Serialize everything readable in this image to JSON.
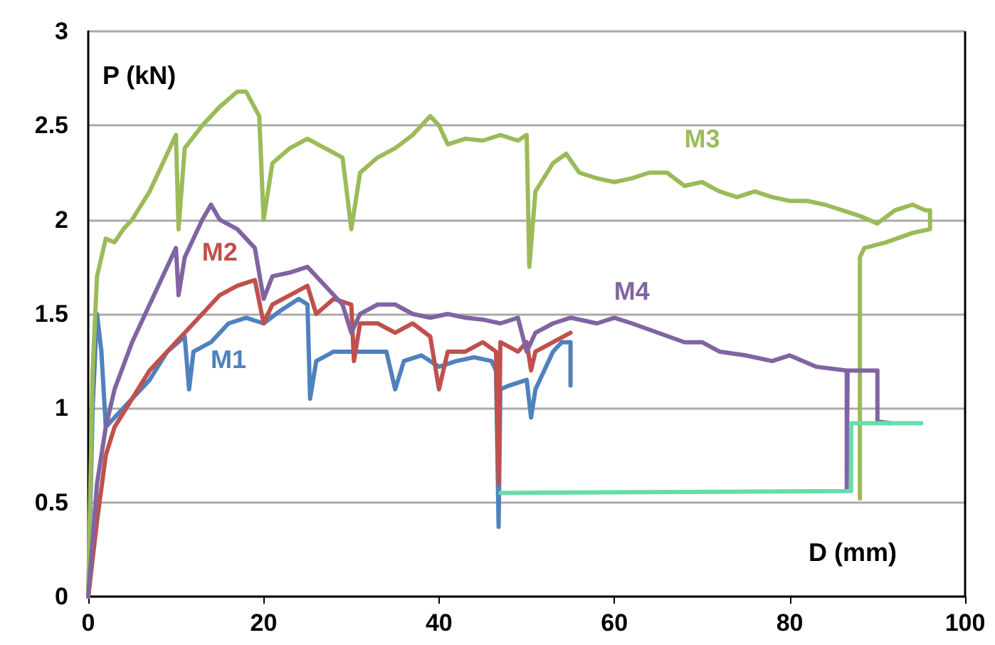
{
  "chart_data": {
    "type": "line",
    "xlabel": "D (mm)",
    "ylabel": "P (kN)",
    "xlim": [
      0,
      100
    ],
    "xticks": [
      0,
      20,
      40,
      60,
      80,
      100
    ],
    "ylim": [
      0,
      3
    ],
    "yticks": [
      0,
      0.5,
      1,
      1.5,
      2,
      2.5,
      3
    ],
    "grid": "y",
    "annotations": [
      "M1",
      "M2",
      "M3",
      "M4"
    ],
    "series": [
      {
        "color": "#4f81bd",
        "x": [
          0,
          0.5,
          1,
          1.5,
          2,
          3,
          5,
          7,
          9,
          11,
          11.5,
          12,
          14,
          16,
          18,
          20,
          22,
          24,
          25,
          25.3,
          26,
          28,
          30,
          32,
          34,
          35,
          36,
          38,
          40,
          42,
          44,
          46,
          46.5,
          46.8,
          47,
          48,
          50,
          50.5,
          51,
          53,
          54,
          55,
          55
        ],
        "values": [
          0,
          1,
          1.5,
          1.3,
          0.9,
          0.95,
          1.05,
          1.15,
          1.3,
          1.38,
          1.1,
          1.3,
          1.35,
          1.45,
          1.48,
          1.45,
          1.52,
          1.58,
          1.55,
          1.05,
          1.25,
          1.3,
          1.3,
          1.3,
          1.3,
          1.1,
          1.25,
          1.28,
          1.22,
          1.25,
          1.27,
          1.25,
          1.2,
          0.37,
          1.1,
          1.12,
          1.15,
          0.95,
          1.1,
          1.3,
          1.35,
          1.35,
          1.12
        ]
      },
      {
        "color": "#c0504d",
        "x": [
          0,
          1,
          2,
          3,
          5,
          7,
          9,
          11,
          13,
          15,
          17,
          19,
          20,
          21,
          23,
          25,
          26,
          28,
          30,
          30.3,
          31,
          33,
          35,
          37,
          39,
          40,
          41,
          43,
          45,
          46.5,
          46.8,
          47,
          49,
          50,
          50.5,
          51,
          53,
          55
        ],
        "values": [
          0,
          0.4,
          0.75,
          0.9,
          1.05,
          1.2,
          1.3,
          1.4,
          1.5,
          1.6,
          1.65,
          1.68,
          1.45,
          1.55,
          1.6,
          1.65,
          1.5,
          1.58,
          1.55,
          1.25,
          1.45,
          1.45,
          1.4,
          1.45,
          1.38,
          1.1,
          1.3,
          1.3,
          1.35,
          1.3,
          0.6,
          1.35,
          1.3,
          1.35,
          1.2,
          1.3,
          1.35,
          1.4
        ]
      },
      {
        "color": "#9bbb59",
        "x": [
          0,
          0.5,
          1,
          2,
          3,
          4,
          5,
          7,
          9,
          10,
          10.3,
          11,
          13,
          15,
          17,
          18,
          19.5,
          20,
          21,
          23,
          25,
          27,
          29,
          30,
          31,
          33,
          35,
          37,
          39,
          40,
          41,
          43,
          45,
          47,
          49,
          50,
          50.3,
          51,
          53,
          54.5,
          56,
          58,
          60,
          62,
          64,
          66,
          68,
          70,
          72,
          74,
          76,
          78,
          80,
          82,
          84,
          86,
          88,
          90,
          92,
          94,
          95.5,
          96,
          96,
          94,
          91,
          88.5,
          88,
          88
        ],
        "values": [
          0,
          1.2,
          1.7,
          1.9,
          1.88,
          1.95,
          2,
          2.15,
          2.35,
          2.45,
          1.95,
          2.38,
          2.5,
          2.6,
          2.68,
          2.68,
          2.55,
          2,
          2.3,
          2.38,
          2.43,
          2.38,
          2.33,
          1.95,
          2.25,
          2.33,
          2.38,
          2.45,
          2.55,
          2.5,
          2.4,
          2.43,
          2.42,
          2.45,
          2.42,
          2.45,
          1.75,
          2.15,
          2.3,
          2.35,
          2.25,
          2.22,
          2.2,
          2.22,
          2.25,
          2.25,
          2.18,
          2.2,
          2.15,
          2.12,
          2.15,
          2.12,
          2.1,
          2.1,
          2.08,
          2.05,
          2.02,
          1.98,
          2.05,
          2.08,
          2.05,
          2.05,
          1.95,
          1.93,
          1.88,
          1.85,
          1.8,
          0.52
        ]
      },
      {
        "color": "#8064a2",
        "x": [
          0,
          1,
          2,
          3,
          5,
          7,
          9,
          10,
          10.3,
          11,
          13,
          14,
          15,
          17,
          19,
          20,
          21,
          23,
          25,
          27,
          29,
          30,
          31,
          33,
          35,
          37,
          39,
          41,
          43,
          45,
          47,
          49,
          50,
          51,
          53,
          55,
          58,
          60,
          62,
          65,
          68,
          70,
          72,
          75,
          78,
          80,
          83,
          86.5,
          86.5,
          86.6,
          89,
          90,
          90,
          91.5
        ],
        "values": [
          0,
          0.6,
          0.9,
          1.1,
          1.35,
          1.55,
          1.75,
          1.85,
          1.6,
          1.8,
          2,
          2.08,
          2,
          1.95,
          1.85,
          1.58,
          1.7,
          1.72,
          1.75,
          1.65,
          1.55,
          1.4,
          1.5,
          1.55,
          1.55,
          1.5,
          1.48,
          1.5,
          1.48,
          1.47,
          1.45,
          1.48,
          1.3,
          1.4,
          1.45,
          1.48,
          1.45,
          1.48,
          1.45,
          1.4,
          1.35,
          1.35,
          1.3,
          1.28,
          1.25,
          1.28,
          1.22,
          1.2,
          0.57,
          1.2,
          1.2,
          1.2,
          0.93,
          0.92
        ]
      },
      {
        "color": "#66ddaa",
        "x": [
          47,
          87,
          87,
          95
        ],
        "values": [
          0.55,
          0.56,
          0.92,
          0.92
        ]
      }
    ]
  }
}
